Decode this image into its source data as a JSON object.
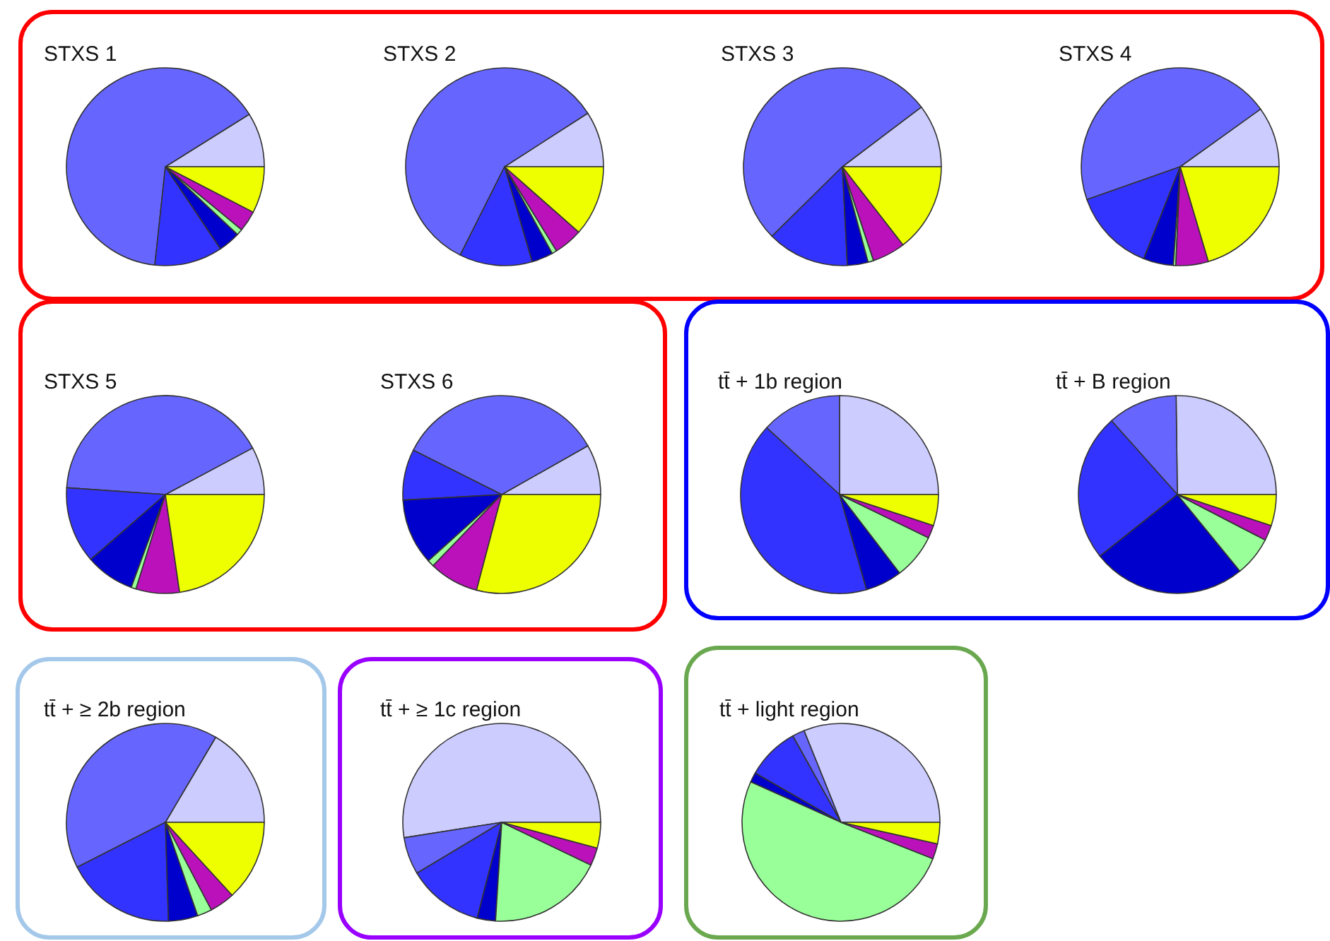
{
  "chart_data": [
    {
      "type": "pie",
      "title": "STXS 1",
      "categories": [
        null,
        null,
        null,
        null,
        null,
        null,
        null
      ],
      "values": [
        8.9,
        64.4,
        11.1,
        3.6,
        1.0,
        3.4,
        7.6
      ],
      "colors": [
        "#ccccff",
        "#6666ff",
        "#3333ff",
        "#0000cc",
        "#99ff99",
        "#bb11bb",
        "#eeff00"
      ]
    },
    {
      "type": "pie",
      "title": "STXS 2",
      "categories": [
        null,
        null,
        null,
        null,
        null,
        null,
        null
      ],
      "values": [
        9.1,
        58.5,
        11.9,
        3.5,
        0.8,
        4.7,
        11.5
      ],
      "colors": [
        "#ccccff",
        "#6666ff",
        "#3333ff",
        "#0000cc",
        "#99ff99",
        "#bb11bb",
        "#eeff00"
      ]
    },
    {
      "type": "pie",
      "title": "STXS 3",
      "categories": [
        null,
        null,
        null,
        null,
        null,
        null,
        null
      ],
      "values": [
        10.3,
        52.1,
        13.4,
        3.4,
        0.9,
        5.4,
        14.5
      ],
      "colors": [
        "#ccccff",
        "#6666ff",
        "#3333ff",
        "#0000cc",
        "#99ff99",
        "#bb11bb",
        "#eeff00"
      ]
    },
    {
      "type": "pie",
      "title": "STXS 4",
      "categories": [
        null,
        null,
        null,
        null,
        null,
        null,
        null
      ],
      "values": [
        9.9,
        45.5,
        13.6,
        4.9,
        0.4,
        5.3,
        20.4
      ],
      "colors": [
        "#ccccff",
        "#6666ff",
        "#3333ff",
        "#0000cc",
        "#99ff99",
        "#bb11bb",
        "#eeff00"
      ]
    },
    {
      "type": "pie",
      "title": "STXS 5",
      "categories": [
        null,
        null,
        null,
        null,
        null,
        null,
        null
      ],
      "values": [
        7.8,
        41.1,
        12.5,
        8.0,
        0.8,
        7.1,
        22.7
      ],
      "colors": [
        "#ccccff",
        "#6666ff",
        "#3333ff",
        "#0000cc",
        "#99ff99",
        "#bb11bb",
        "#eeff00"
      ]
    },
    {
      "type": "pie",
      "title": "STXS 6",
      "categories": [
        null,
        null,
        null,
        null,
        null,
        null,
        null
      ],
      "values": [
        8.2,
        34.4,
        8.3,
        10.8,
        1.1,
        8.1,
        29.1
      ],
      "colors": [
        "#ccccff",
        "#6666ff",
        "#3333ff",
        "#0000cc",
        "#99ff99",
        "#bb11bb",
        "#eeff00"
      ]
    },
    {
      "type": "pie",
      "title": "tt̄ + 1b region",
      "categories": [
        null,
        null,
        null,
        null,
        null,
        null,
        null
      ],
      "values": [
        25.0,
        13.2,
        41.2,
        6.0,
        7.4,
        2.1,
        5.1
      ],
      "colors": [
        "#ccccff",
        "#6666ff",
        "#3333ff",
        "#0000cc",
        "#99ff99",
        "#bb11bb",
        "#eeff00"
      ]
    },
    {
      "type": "pie",
      "title": "tt̄ + B region",
      "categories": [
        null,
        null,
        null,
        null,
        null,
        null,
        null
      ],
      "values": [
        25.2,
        11.4,
        24.1,
        25.2,
        6.5,
        2.5,
        5.1
      ],
      "colors": [
        "#ccccff",
        "#6666ff",
        "#3333ff",
        "#0000cc",
        "#99ff99",
        "#bb11bb",
        "#eeff00"
      ]
    },
    {
      "type": "pie",
      "title": "tt̄ + ≥ 2b region",
      "categories": [
        null,
        null,
        null,
        null,
        null,
        null,
        null
      ],
      "values": [
        16.5,
        41.0,
        18.0,
        4.8,
        2.4,
        4.1,
        13.2
      ],
      "colors": [
        "#ccccff",
        "#6666ff",
        "#3333ff",
        "#0000cc",
        "#99ff99",
        "#bb11bb",
        "#eeff00"
      ]
    },
    {
      "type": "pie",
      "title": "tt̄ + ≥ 1c region",
      "categories": [
        null,
        null,
        null,
        null,
        null,
        null,
        null
      ],
      "values": [
        52.5,
        6.1,
        12.4,
        3.0,
        18.9,
        2.9,
        4.2
      ],
      "colors": [
        "#ccccff",
        "#6666ff",
        "#3333ff",
        "#0000cc",
        "#99ff99",
        "#bb11bb",
        "#eeff00"
      ]
    },
    {
      "type": "pie",
      "title": "tt̄ + light region",
      "categories": [
        null,
        null,
        null,
        null,
        null,
        null,
        null
      ],
      "values": [
        31.1,
        2.0,
        8.6,
        1.6,
        50.7,
        2.5,
        3.5
      ],
      "colors": [
        "#ccccff",
        "#6666ff",
        "#3333ff",
        "#0000cc",
        "#99ff99",
        "#bb11bb",
        "#eeff00"
      ]
    }
  ]
}
